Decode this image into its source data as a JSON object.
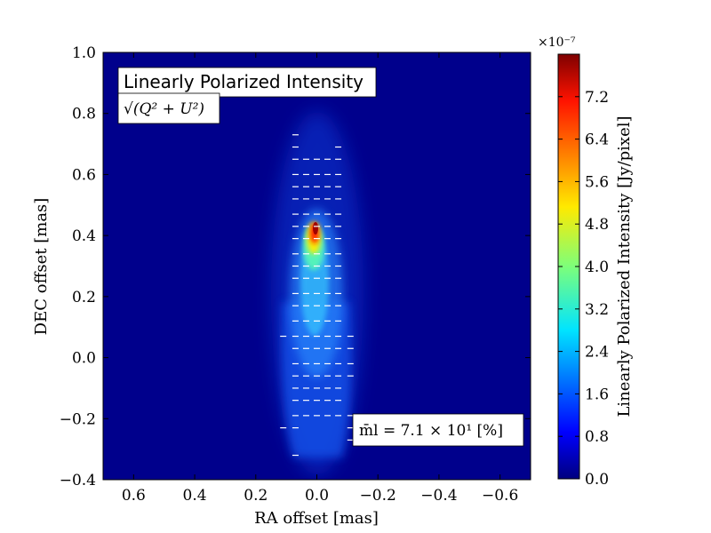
{
  "chart_data": {
    "type": "heatmap",
    "title": "Linearly Polarized Intensity",
    "formula": "√(Q² + U²)",
    "xlabel": "RA offset [mas]",
    "ylabel": "DEC offset [mas]",
    "xlim": [
      0.7,
      -0.7
    ],
    "ylim": [
      -0.4,
      1.0
    ],
    "xticks": [
      0.6,
      0.4,
      0.2,
      0.0,
      -0.2,
      -0.4,
      -0.6
    ],
    "xtick_labels": [
      "0.6",
      "0.4",
      "0.2",
      "0.0",
      "−0.2",
      "−0.4",
      "−0.6"
    ],
    "yticks": [
      1.0,
      0.8,
      0.6,
      0.4,
      0.2,
      0.0,
      -0.2,
      -0.4
    ],
    "ytick_labels": [
      "1.0",
      "0.8",
      "0.6",
      "0.4",
      "0.2",
      "0.0",
      "−0.2",
      "−0.4"
    ],
    "annotation": "m̄l = 7.1 × 10¹ [%]",
    "colorbar": {
      "label": "Linearly Polarized Intensity [Jy/pixel]",
      "scale_label": "×10⁻⁷",
      "range": [
        0.0,
        8.0
      ],
      "ticks": [
        0.0,
        0.8,
        1.6,
        2.4,
        3.2,
        4.0,
        4.8,
        5.6,
        6.4,
        7.2
      ],
      "tick_labels": [
        "0.0",
        "0.8",
        "1.6",
        "2.4",
        "3.2",
        "4.0",
        "4.8",
        "5.6",
        "6.4",
        "7.2"
      ],
      "colormap": "jet"
    },
    "peak": {
      "ra": 0.0,
      "dec": 0.4,
      "value": 8.0
    },
    "vectors": [
      {
        "dec": 0.73,
        "ra": [
          0.07
        ]
      },
      {
        "dec": 0.69,
        "ra": [
          0.07,
          -0.07
        ]
      },
      {
        "dec": 0.65,
        "ra": [
          0.07,
          0.035,
          0.0,
          -0.035,
          -0.07
        ]
      },
      {
        "dec": 0.6,
        "ra": [
          0.07,
          0.035,
          0.0,
          -0.035,
          -0.07
        ]
      },
      {
        "dec": 0.56,
        "ra": [
          0.07,
          0.035,
          0.0,
          -0.035,
          -0.07
        ]
      },
      {
        "dec": 0.52,
        "ra": [
          0.07,
          0.035,
          0.0,
          -0.035,
          -0.07
        ]
      },
      {
        "dec": 0.47,
        "ra": [
          0.07,
          0.035,
          0.0,
          -0.035,
          -0.07
        ]
      },
      {
        "dec": 0.43,
        "ra": [
          0.07,
          0.035,
          0.0,
          -0.035,
          -0.07
        ]
      },
      {
        "dec": 0.39,
        "ra": [
          0.07,
          0.035,
          0.0,
          -0.035,
          -0.07
        ]
      },
      {
        "dec": 0.34,
        "ra": [
          0.07,
          0.035,
          0.0,
          -0.035,
          -0.07
        ]
      },
      {
        "dec": 0.3,
        "ra": [
          0.07,
          0.035,
          0.0,
          -0.035,
          -0.07
        ]
      },
      {
        "dec": 0.26,
        "ra": [
          0.07,
          0.035,
          0.0,
          -0.035,
          -0.07
        ]
      },
      {
        "dec": 0.21,
        "ra": [
          0.07,
          0.035,
          0.0,
          -0.035,
          -0.07
        ]
      },
      {
        "dec": 0.17,
        "ra": [
          0.07,
          0.035,
          0.0,
          -0.035,
          -0.07
        ]
      },
      {
        "dec": 0.12,
        "ra": [
          0.07,
          0.035,
          0.0,
          -0.035,
          -0.07
        ]
      },
      {
        "dec": 0.07,
        "ra": [
          0.11,
          0.07,
          0.035,
          0.0,
          -0.035,
          -0.07,
          -0.11
        ]
      },
      {
        "dec": 0.03,
        "ra": [
          0.07,
          0.035,
          0.0,
          -0.035,
          -0.07,
          -0.11
        ]
      },
      {
        "dec": -0.02,
        "ra": [
          0.07,
          0.035,
          0.0,
          -0.035,
          -0.07,
          -0.11
        ]
      },
      {
        "dec": -0.06,
        "ra": [
          0.07,
          0.035,
          0.0,
          -0.035,
          -0.07,
          -0.11
        ]
      },
      {
        "dec": -0.1,
        "ra": [
          0.07,
          0.035,
          0.0,
          -0.035,
          -0.07
        ]
      },
      {
        "dec": -0.14,
        "ra": [
          0.07,
          0.035,
          0.0,
          -0.035,
          -0.07
        ]
      },
      {
        "dec": -0.19,
        "ra": [
          0.07,
          0.035,
          0.0,
          -0.035,
          -0.07,
          -0.11
        ]
      },
      {
        "dec": -0.23,
        "ra": [
          0.11,
          0.07,
          -0.11
        ]
      },
      {
        "dec": -0.27,
        "ra": [
          -0.11
        ]
      },
      {
        "dec": -0.32,
        "ra": [
          0.07
        ]
      }
    ]
  }
}
